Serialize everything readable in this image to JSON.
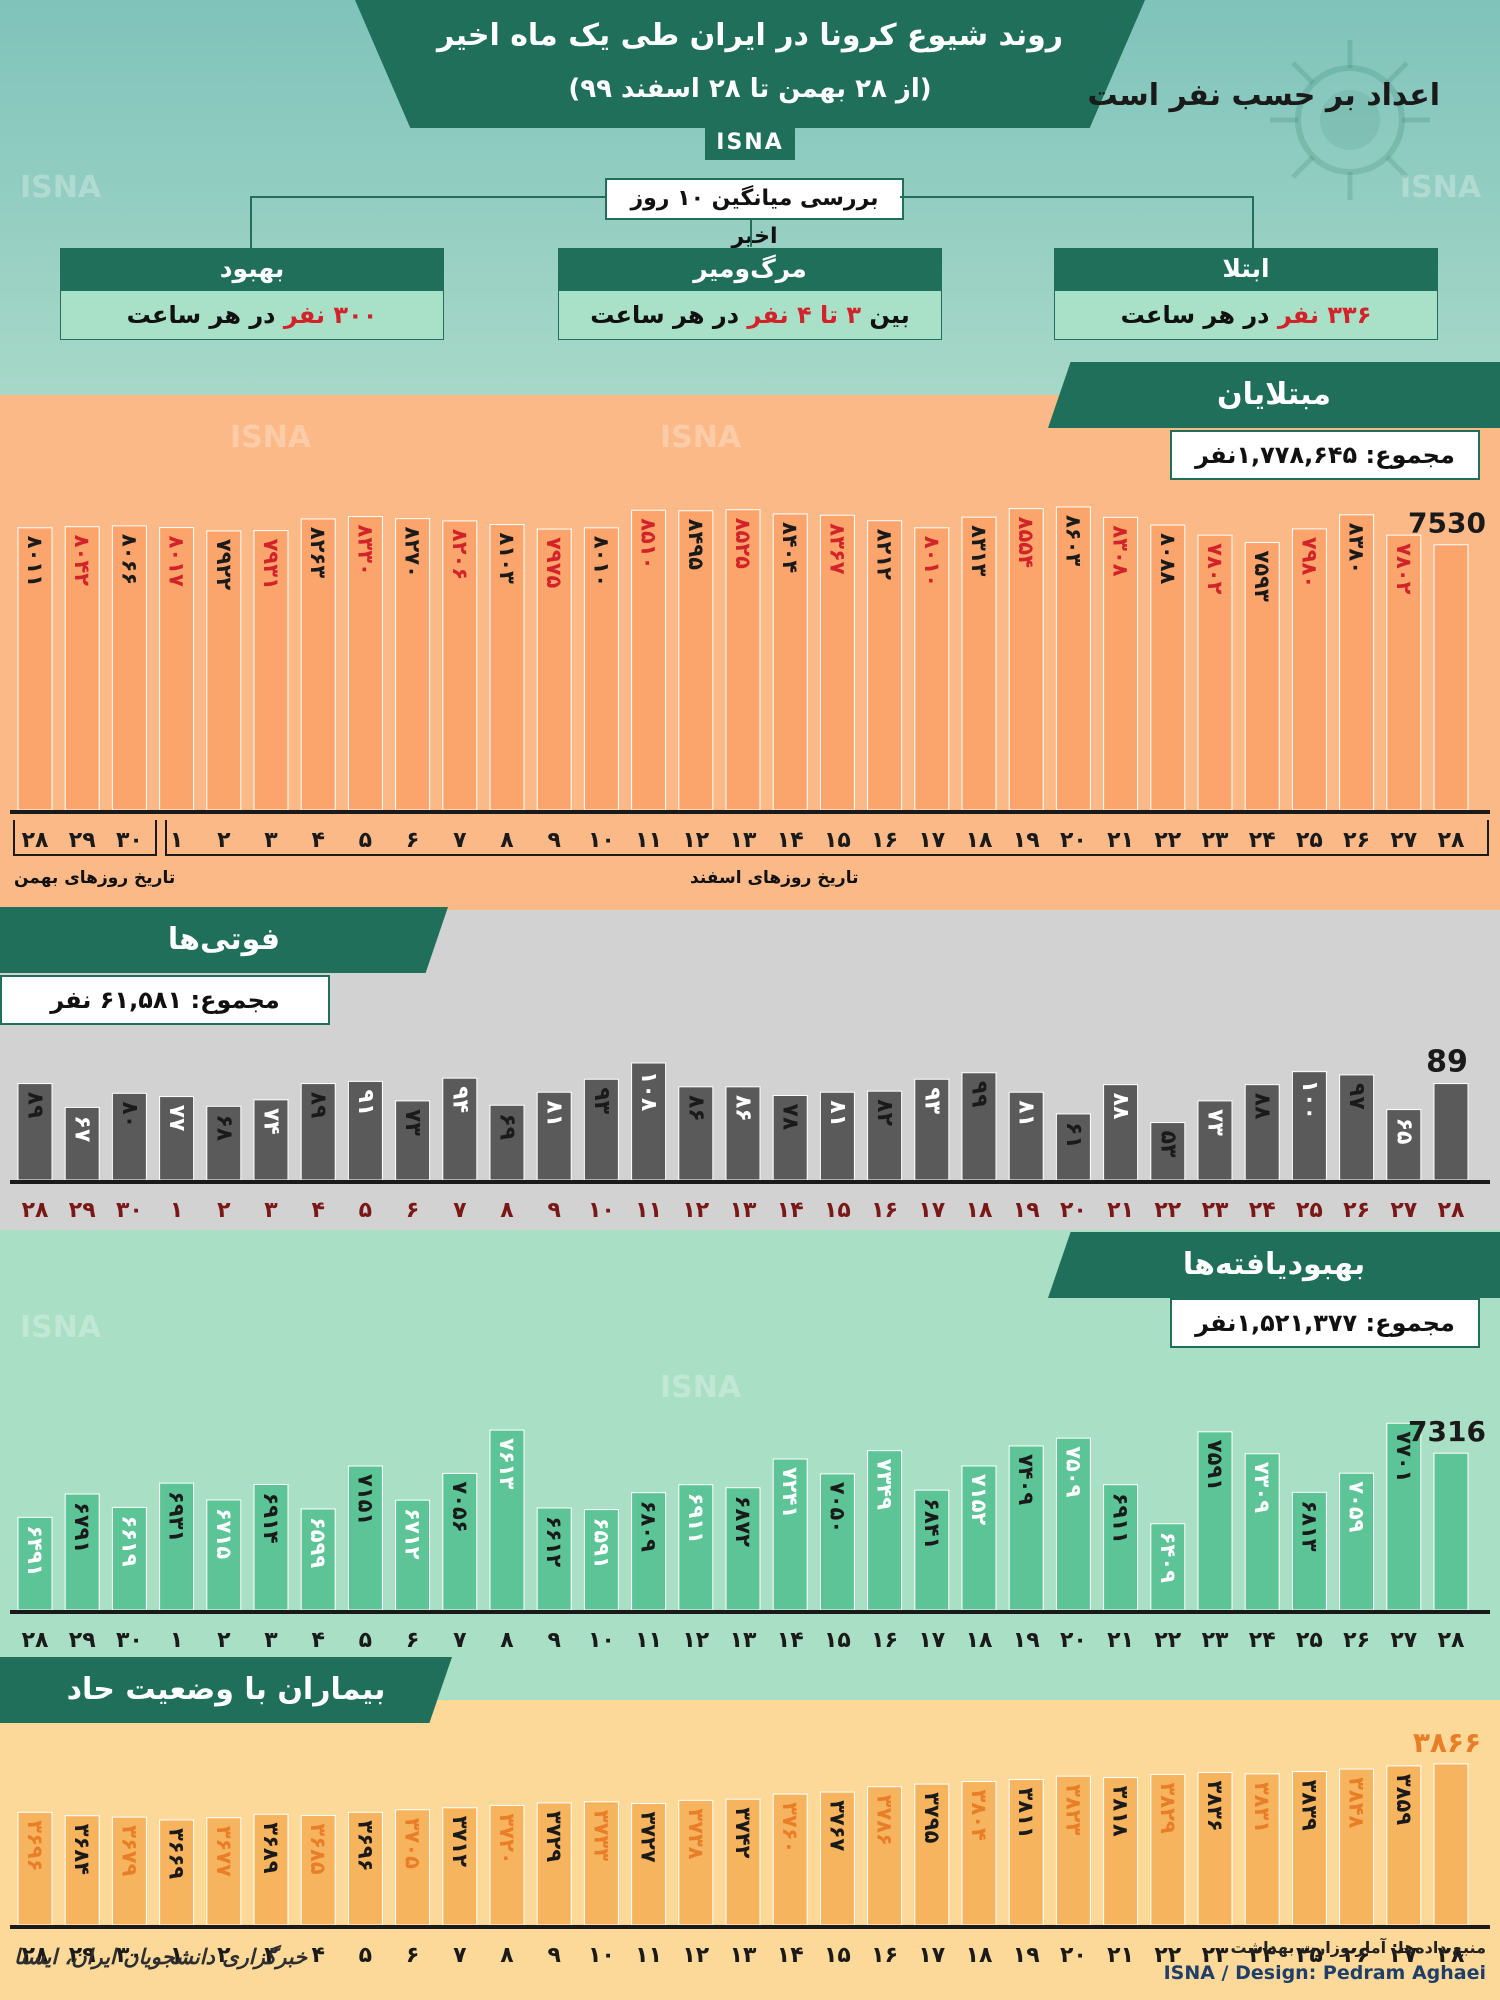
{
  "header": {
    "title": "روند شیوع کرونا در ایران طی یک ماه اخیر",
    "subtitle": "(از ۲۸ بهمن تا ۲۸ اسفند ۹۹)",
    "agency": "ISNA",
    "unit_note": "اعداد بر حسب نفر است"
  },
  "averages": {
    "title": "بررسی میانگین ۱۰ روز اخیر",
    "cards": [
      {
        "label": "بهبود",
        "value_red": "۳۰۰ نفر",
        "value_rest": " در هر ساعت"
      },
      {
        "label": "مرگ‌ومیر",
        "value_pre": "بین ",
        "value_red": "۳ تا ۴ نفر",
        "value_rest": " در هر ساعت"
      },
      {
        "label": "ابتلا",
        "value_red": "۳۳۶ نفر",
        "value_rest": " در هر ساعت"
      }
    ]
  },
  "sections": {
    "infected": {
      "title": "مبتلایان",
      "total": "مجموع: ۱,۷۷۸,۶۴۵نفر"
    },
    "deaths": {
      "title": "فوتی‌ها",
      "total": "مجموع: ۶۱,۵۸۱ نفر"
    },
    "recovered": {
      "title": "بهبودیافته‌ها",
      "total": "مجموع: ۱,۵۲۱,۳۷۷نفر"
    },
    "critical": {
      "title": "بیماران با وضعیت حاد"
    }
  },
  "axis_notes": {
    "bahman": "تاریخ روزهای بهمن",
    "esfand": "تاریخ روزهای اسفند"
  },
  "credits": {
    "logo_text": "خبرگزاری دانشجویان ایران، ایسنا",
    "source": "منبع داده‌ها: آمار وزارت بهداشت",
    "design": "ISNA / Design: Pedram Aghaei"
  },
  "colors": {
    "dark_green": "#1f6f5a",
    "red": "#d2232a",
    "infected_bar": "#fba46b",
    "deaths_bar": "#5a5a5a",
    "recovered_bar": "#5cc497",
    "critical_bar": "#f7b45e",
    "date_red": "#7a1818"
  },
  "chart_data": [
    {
      "type": "bar",
      "name": "infected",
      "categories": [
        "۲۸",
        "۲۹",
        "۳۰",
        "۱",
        "۲",
        "۳",
        "۴",
        "۵",
        "۶",
        "۷",
        "۸",
        "۹",
        "۱۰",
        "۱۱",
        "۱۲",
        "۱۳",
        "۱۴",
        "۱۵",
        "۱۶",
        "۱۷",
        "۱۸",
        "۱۹",
        "۲۰",
        "۲۱",
        "۲۲",
        "۲۳",
        "۲۴",
        "۲۵",
        "۲۶",
        "۲۷",
        "۲۸"
      ],
      "values": [
        8011,
        8042,
        8066,
        8017,
        7922,
        7931,
        8263,
        8330,
        8270,
        8206,
        8103,
        7975,
        8010,
        8510,
        8495,
        8525,
        8404,
        8367,
        8212,
        8010,
        8313,
        8554,
        8603,
        8308,
        8088,
        7802,
        7593,
        7980,
        8380,
        7802,
        7530
      ],
      "labels": [
        "۸۰۱۱",
        "۸۰۴۲",
        "۸۰۶۶",
        "۸۰۱۷",
        "۷۹۲۲",
        "۷۹۳۱",
        "۸۲۶۳",
        "۸۳۳۰",
        "۸۲۷۰",
        "۸۲۰۶",
        "۸۱۰۳",
        "۷۹۷۵",
        "۸۰۱۰",
        "۸۵۱۰",
        "۸۴۹۵",
        "۸۵۲۵",
        "۸۴۰۴",
        "۸۳۶۷",
        "۸۲۱۲",
        "۸۰۱۰",
        "۸۳۱۳",
        "۸۵۵۴",
        "۸۶۰۳",
        "۸۳۰۸",
        "۸۰۸۸",
        "۷۸۰۲",
        "۷۵۹۳",
        "۷۹۸۰",
        "۸۳۸۰",
        "۷۸۰۲",
        ""
      ],
      "label_colors": [
        "dark",
        "red",
        "dark",
        "red",
        "dark",
        "red",
        "dark",
        "red",
        "dark",
        "red",
        "dark",
        "red",
        "dark",
        "red",
        "dark",
        "red",
        "dark",
        "red",
        "dark",
        "red",
        "dark",
        "red",
        "dark",
        "red",
        "dark",
        "red",
        "dark",
        "red",
        "dark",
        "red",
        "dark"
      ],
      "last_label": "7530",
      "ylim": [
        0,
        8800
      ]
    },
    {
      "type": "bar",
      "name": "deaths",
      "categories": [
        "۲۸",
        "۲۹",
        "۳۰",
        "۱",
        "۲",
        "۳",
        "۴",
        "۵",
        "۶",
        "۷",
        "۸",
        "۹",
        "۱۰",
        "۱۱",
        "۱۲",
        "۱۳",
        "۱۴",
        "۱۵",
        "۱۶",
        "۱۷",
        "۱۸",
        "۱۹",
        "۲۰",
        "۲۱",
        "۲۲",
        "۲۳",
        "۲۴",
        "۲۵",
        "۲۶",
        "۲۷",
        "۲۸"
      ],
      "values": [
        89,
        67,
        80,
        77,
        68,
        74,
        89,
        91,
        73,
        94,
        69,
        81,
        93,
        108,
        86,
        86,
        78,
        81,
        82,
        93,
        99,
        81,
        61,
        88,
        53,
        73,
        88,
        100,
        97,
        65,
        89
      ],
      "labels": [
        "۸۹",
        "۶۷",
        "۸۰",
        "۷۷",
        "۶۸",
        "۷۴",
        "۸۹",
        "۹۱",
        "۷۳",
        "۹۴",
        "۶۹",
        "۸۱",
        "۹۳",
        "۱۰۸",
        "۸۶",
        "۸۶",
        "۷۸",
        "۸۱",
        "۸۲",
        "۹۳",
        "۹۹",
        "۸۱",
        "۶۱",
        "۸۸",
        "۵۳",
        "۷۳",
        "۸۸",
        "۱۰۰",
        "۹۷",
        "۶۵",
        ""
      ],
      "label_colors": [
        "dark",
        "light",
        "dark",
        "light",
        "dark",
        "light",
        "dark",
        "light",
        "dark",
        "light",
        "dark",
        "light",
        "dark",
        "light",
        "dark",
        "light",
        "dark",
        "light",
        "dark",
        "light",
        "dark",
        "light",
        "dark",
        "light",
        "dark",
        "light",
        "dark",
        "light",
        "dark",
        "light",
        "dark"
      ],
      "last_label": "89",
      "ylim": [
        0,
        120
      ]
    },
    {
      "type": "bar",
      "name": "recovered",
      "categories": [
        "۲۸",
        "۲۹",
        "۳۰",
        "۱",
        "۲",
        "۳",
        "۴",
        "۵",
        "۶",
        "۷",
        "۸",
        "۹",
        "۱۰",
        "۱۱",
        "۱۲",
        "۱۳",
        "۱۴",
        "۱۵",
        "۱۶",
        "۱۷",
        "۱۸",
        "۱۹",
        "۲۰",
        "۲۱",
        "۲۲",
        "۲۳",
        "۲۴",
        "۲۵",
        "۲۶",
        "۲۷",
        "۲۸"
      ],
      "values": [
        6491,
        6791,
        6619,
        6931,
        6715,
        6914,
        6599,
        7151,
        6712,
        7056,
        7613,
        6612,
        6591,
        6809,
        6911,
        6872,
        7241,
        7050,
        7349,
        6841,
        7152,
        7409,
        7509,
        6911,
        6409,
        7591,
        7309,
        6813,
        7059,
        7701,
        7316
      ],
      "labels": [
        "۶۴۹۱",
        "۶۷۹۱",
        "۶۶۱۹",
        "۶۹۳۱",
        "۶۷۱۵",
        "۶۹۱۴",
        "۶۵۹۹",
        "۷۱۵۱",
        "۶۷۱۲",
        "۷۰۵۶",
        "۷۶۱۳",
        "۶۶۱۲",
        "۶۵۹۱",
        "۶۸۰۹",
        "۶۹۱۱",
        "۶۸۷۲",
        "۷۲۴۱",
        "۷۰۵۰",
        "۷۳۴۹",
        "۶۸۴۱",
        "۷۱۵۲",
        "۷۴۰۹",
        "۷۵۰۹",
        "۶۹۱۱",
        "۶۴۰۹",
        "۷۵۹۱",
        "۷۳۰۹",
        "۶۸۱۳",
        "۷۰۵۹",
        "۷۷۰۱",
        ""
      ],
      "label_colors": [
        "light",
        "dark",
        "light",
        "dark",
        "light",
        "dark",
        "light",
        "dark",
        "light",
        "dark",
        "light",
        "dark",
        "light",
        "dark",
        "light",
        "dark",
        "light",
        "dark",
        "light",
        "dark",
        "light",
        "dark",
        "light",
        "dark",
        "light",
        "dark",
        "light",
        "dark",
        "light",
        "dark",
        "dark"
      ],
      "last_label": "7316",
      "ylim": [
        5300,
        8000
      ]
    },
    {
      "type": "bar",
      "name": "critical",
      "categories": [
        "۲۸",
        "۲۹",
        "۳۰",
        "۱",
        "۲",
        "۳",
        "۴",
        "۵",
        "۶",
        "۷",
        "۸",
        "۹",
        "۱۰",
        "۱۱",
        "۱۲",
        "۱۳",
        "۱۴",
        "۱۵",
        "۱۶",
        "۱۷",
        "۱۸",
        "۱۹",
        "۲۰",
        "۲۱",
        "۲۲",
        "۲۳",
        "۲۴",
        "۲۵",
        "۲۶",
        "۲۷",
        "۲۸"
      ],
      "values": [
        3696,
        3684,
        3679,
        3669,
        3677,
        3689,
        3685,
        3696,
        3705,
        3712,
        3720,
        3729,
        3733,
        3727,
        3738,
        3742,
        3760,
        3767,
        3786,
        3795,
        3804,
        3811,
        3823,
        3818,
        3829,
        3836,
        3831,
        3839,
        3848,
        3859,
        3866
      ],
      "labels": [
        "۳۶۹۶",
        "۳۶۸۴",
        "۳۶۷۹",
        "۳۶۶۹",
        "۳۶۷۷",
        "۳۶۸۹",
        "۳۶۸۵",
        "۳۶۹۶",
        "۳۷۰۵",
        "۳۷۱۲",
        "۳۷۲۰",
        "۳۷۲۹",
        "۳۷۳۳",
        "۳۷۲۷",
        "۳۷۳۸",
        "۳۷۴۲",
        "۳۷۶۰",
        "۳۷۶۷",
        "۳۷۸۶",
        "۳۷۹۵",
        "۳۸۰۴",
        "۳۸۱۱",
        "۳۸۲۳",
        "۳۸۱۸",
        "۳۸۲۹",
        "۳۸۳۶",
        "۳۸۳۱",
        "۳۸۳۹",
        "۳۸۴۸",
        "۳۸۵۹",
        ""
      ],
      "label_colors": [
        "orange",
        "dark",
        "orange",
        "dark",
        "orange",
        "dark",
        "orange",
        "dark",
        "orange",
        "dark",
        "orange",
        "dark",
        "orange",
        "dark",
        "orange",
        "dark",
        "orange",
        "dark",
        "orange",
        "dark",
        "orange",
        "dark",
        "orange",
        "dark",
        "orange",
        "dark",
        "orange",
        "dark",
        "orange",
        "dark",
        "dark"
      ],
      "last_label": "۳۸۶۶",
      "ylim": [
        3300,
        3950
      ]
    }
  ]
}
